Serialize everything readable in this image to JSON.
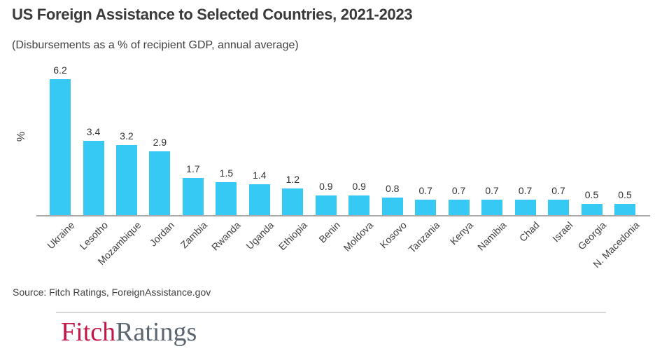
{
  "title": "US Foreign Assistance to Selected Countries, 2021-2023",
  "subtitle": "(Disbursements as a % of recipient GDP, annual average)",
  "chart_data": {
    "type": "bar",
    "title": "US Foreign Assistance to Selected Countries, 2021-2023",
    "subtitle": "(Disbursements as a % of recipient GDP, annual average)",
    "categories": [
      "Ukraine",
      "Lesotho",
      "Mozambique",
      "Jordan",
      "Zambia",
      "Rwanda",
      "Uganda",
      "Ethiopia",
      "Benin",
      "Moldova",
      "Kosovo",
      "Tanzania",
      "Kenya",
      "Namibia",
      "Chad",
      "Israel",
      "Georgia",
      "N. Macedonia"
    ],
    "values": [
      6.2,
      3.4,
      3.2,
      2.9,
      1.7,
      1.5,
      1.4,
      1.2,
      0.9,
      0.9,
      0.8,
      0.7,
      0.7,
      0.7,
      0.7,
      0.7,
      0.5,
      0.5
    ],
    "xlabel": "",
    "ylabel": "%",
    "ylim": [
      0,
      6.5
    ],
    "grid": false,
    "legend": "none",
    "value_labels": "above bars",
    "category_label_rotation_deg": -45
  },
  "source": "Source: Fitch Ratings, ForeignAssistance.gov",
  "logo": {
    "fitch": "Fitch",
    "ratings": "Ratings"
  },
  "colors": {
    "bar": "#35c9f3",
    "title_text": "#3a3a3a",
    "body_text": "#404040",
    "axis": "#a9a9a9",
    "divider": "#d6d6d6",
    "logo_red": "#c41646",
    "logo_gray": "#5b6670"
  }
}
